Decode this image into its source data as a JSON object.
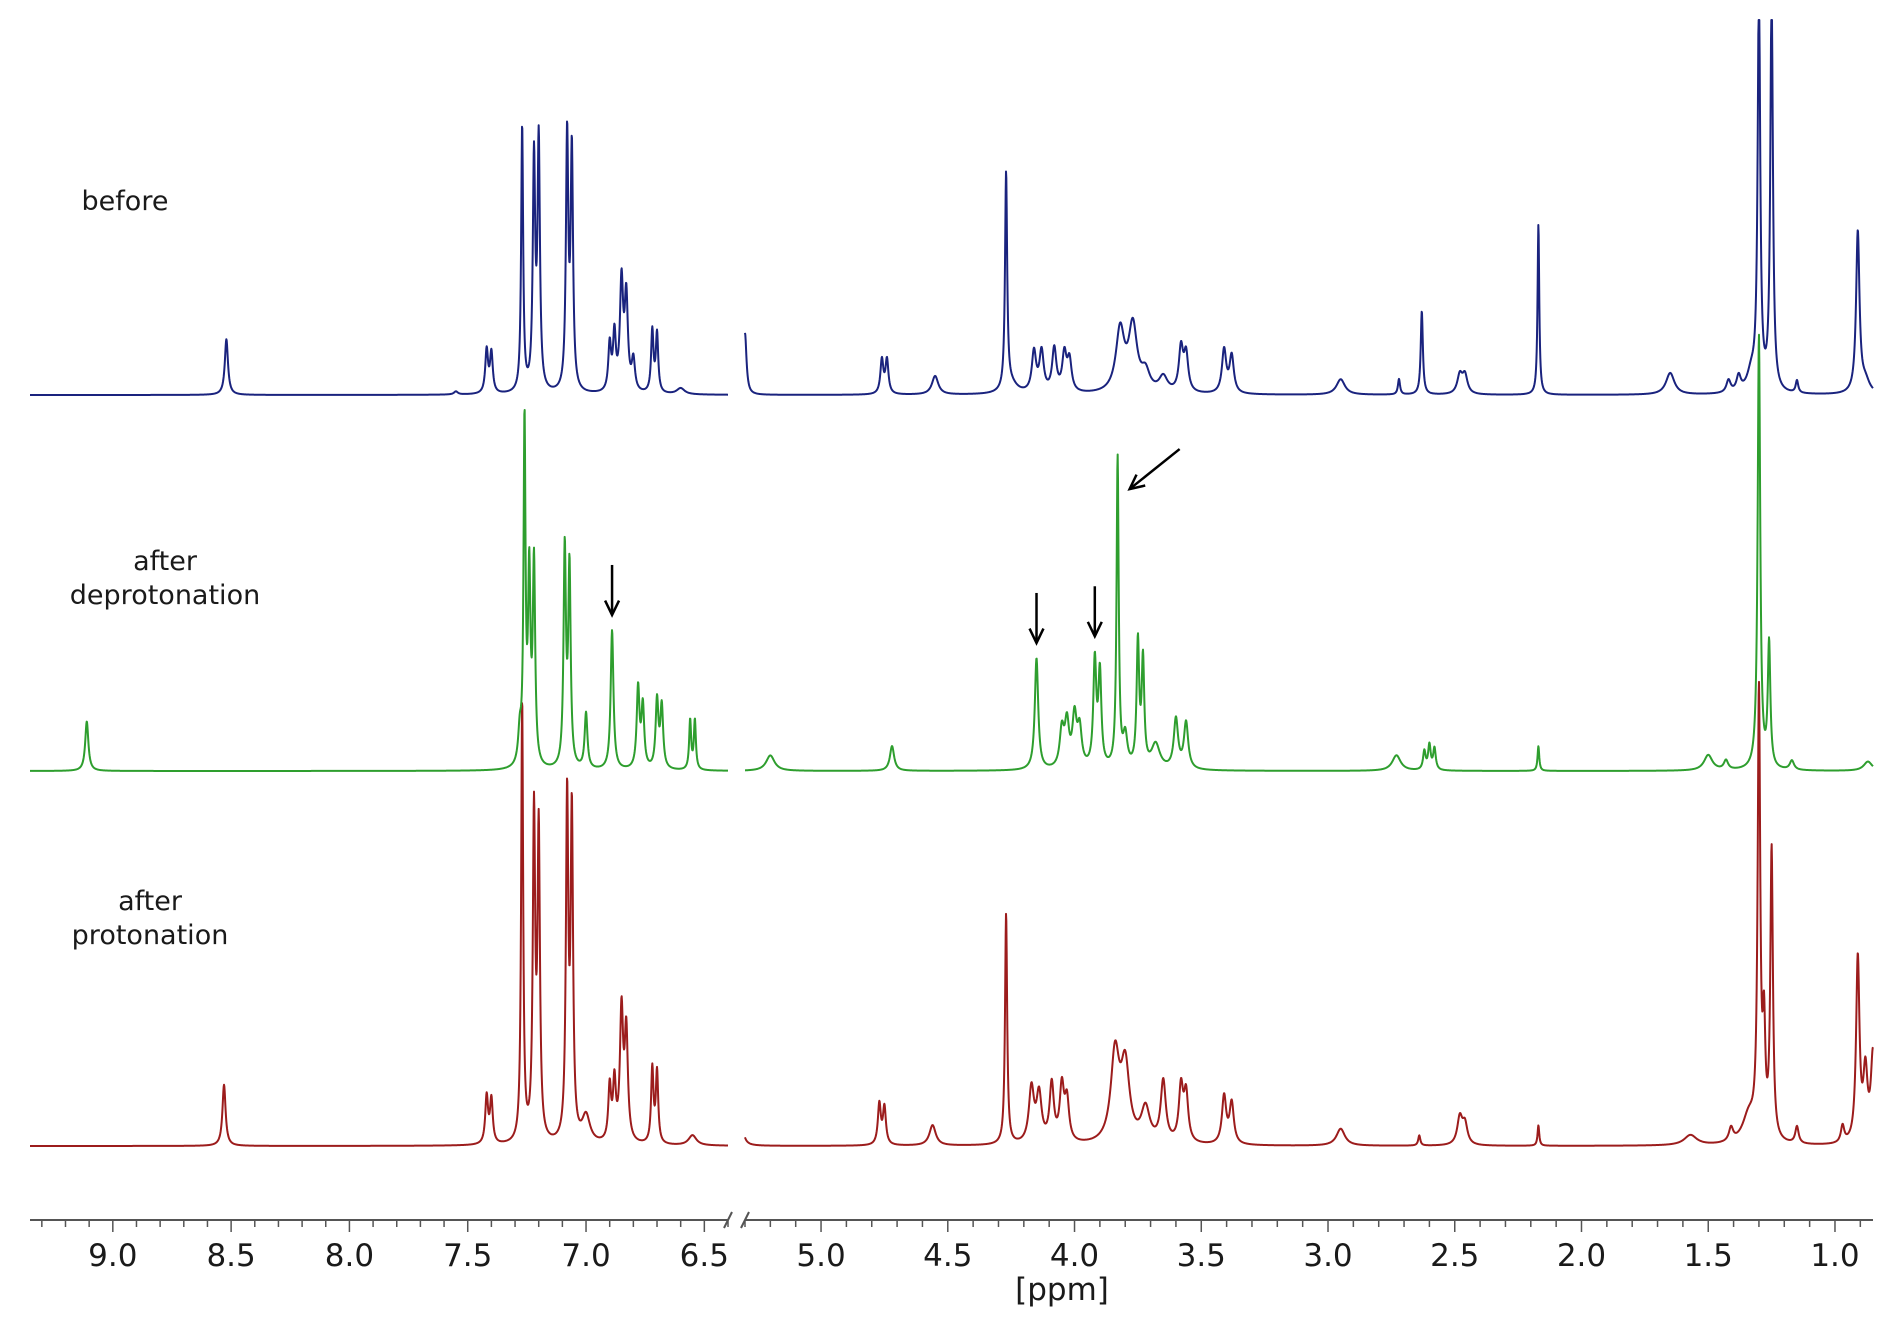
{
  "chart_data": {
    "type": "line",
    "xlabel": "[ppm]",
    "x_reversed": true,
    "x_range": [
      9.35,
      0.85
    ],
    "axis_break_between": [
      6.4,
      5.3
    ],
    "ticks": [
      "9.0",
      "8.5",
      "8.0",
      "7.5",
      "7.0",
      "6.5",
      "5.0",
      "4.5",
      "4.0",
      "3.5",
      "3.0",
      "2.5",
      "2.0",
      "1.5",
      "1.0"
    ],
    "tick_values": [
      9.0,
      8.5,
      8.0,
      7.5,
      7.0,
      6.5,
      5.0,
      4.5,
      4.0,
      3.5,
      3.0,
      2.5,
      2.0,
      1.5,
      1.0
    ],
    "series": [
      {
        "name": "before",
        "label_lines": [
          "before"
        ],
        "color": "#1a237e",
        "peaks": [
          [
            8.52,
            0.18,
            0.008
          ],
          [
            7.55,
            0.01,
            0.01
          ],
          [
            7.42,
            0.14,
            0.007
          ],
          [
            7.4,
            0.13,
            0.007
          ],
          [
            7.27,
            0.86,
            0.005
          ],
          [
            7.22,
            0.74,
            0.006
          ],
          [
            7.2,
            0.8,
            0.006
          ],
          [
            7.08,
            0.82,
            0.006
          ],
          [
            7.06,
            0.77,
            0.006
          ],
          [
            6.9,
            0.15,
            0.007
          ],
          [
            6.88,
            0.18,
            0.007
          ],
          [
            6.85,
            0.35,
            0.008
          ],
          [
            6.83,
            0.3,
            0.008
          ],
          [
            6.8,
            0.1,
            0.008
          ],
          [
            6.72,
            0.2,
            0.006
          ],
          [
            6.7,
            0.19,
            0.006
          ],
          [
            6.6,
            0.02,
            0.02
          ],
          [
            5.3,
            0.2,
            0.007
          ],
          [
            4.76,
            0.11,
            0.007
          ],
          [
            4.74,
            0.11,
            0.007
          ],
          [
            4.55,
            0.06,
            0.015
          ],
          [
            4.27,
            0.7,
            0.005
          ],
          [
            4.25,
            0.03,
            0.03
          ],
          [
            4.16,
            0.13,
            0.01
          ],
          [
            4.13,
            0.13,
            0.01
          ],
          [
            4.08,
            0.14,
            0.01
          ],
          [
            4.04,
            0.12,
            0.01
          ],
          [
            4.02,
            0.1,
            0.01
          ],
          [
            3.82,
            0.2,
            0.02
          ],
          [
            3.77,
            0.21,
            0.02
          ],
          [
            3.72,
            0.06,
            0.02
          ],
          [
            3.65,
            0.05,
            0.02
          ],
          [
            3.58,
            0.14,
            0.01
          ],
          [
            3.56,
            0.12,
            0.01
          ],
          [
            3.41,
            0.14,
            0.01
          ],
          [
            3.38,
            0.12,
            0.01
          ],
          [
            2.95,
            0.05,
            0.02
          ],
          [
            2.72,
            0.05,
            0.005
          ],
          [
            2.63,
            0.27,
            0.005
          ],
          [
            2.48,
            0.06,
            0.012
          ],
          [
            2.46,
            0.06,
            0.012
          ],
          [
            2.17,
            0.55,
            0.004
          ],
          [
            1.65,
            0.07,
            0.02
          ],
          [
            1.42,
            0.04,
            0.01
          ],
          [
            1.38,
            0.05,
            0.01
          ],
          [
            1.33,
            0.06,
            0.02
          ],
          [
            1.3,
            1.3,
            0.006
          ],
          [
            1.25,
            1.3,
            0.006
          ],
          [
            1.15,
            0.04,
            0.006
          ],
          [
            0.91,
            0.52,
            0.008
          ],
          [
            0.88,
            0.04,
            0.02
          ]
        ]
      },
      {
        "name": "after deprotonation",
        "label_lines": [
          "after",
          "deprotonation"
        ],
        "color": "#2e9e2e",
        "peaks": [
          [
            9.11,
            0.16,
            0.008
          ],
          [
            7.28,
            0.1,
            0.008
          ],
          [
            7.26,
            1.1,
            0.005
          ],
          [
            7.24,
            0.6,
            0.006
          ],
          [
            7.22,
            0.65,
            0.006
          ],
          [
            7.09,
            0.7,
            0.006
          ],
          [
            7.07,
            0.64,
            0.006
          ],
          [
            7.0,
            0.18,
            0.007
          ],
          [
            6.89,
            0.45,
            0.007
          ],
          [
            6.78,
            0.26,
            0.007
          ],
          [
            6.76,
            0.2,
            0.007
          ],
          [
            6.7,
            0.22,
            0.007
          ],
          [
            6.68,
            0.2,
            0.007
          ],
          [
            6.56,
            0.16,
            0.005
          ],
          [
            6.54,
            0.16,
            0.005
          ],
          [
            5.2,
            0.05,
            0.02
          ],
          [
            4.72,
            0.08,
            0.01
          ],
          [
            4.15,
            0.36,
            0.008
          ],
          [
            4.05,
            0.12,
            0.01
          ],
          [
            4.03,
            0.14,
            0.01
          ],
          [
            4.0,
            0.16,
            0.01
          ],
          [
            3.98,
            0.12,
            0.01
          ],
          [
            3.92,
            0.34,
            0.007
          ],
          [
            3.9,
            0.3,
            0.007
          ],
          [
            3.83,
            1.0,
            0.005
          ],
          [
            3.8,
            0.1,
            0.01
          ],
          [
            3.75,
            0.4,
            0.006
          ],
          [
            3.73,
            0.34,
            0.006
          ],
          [
            3.68,
            0.08,
            0.02
          ],
          [
            3.6,
            0.16,
            0.01
          ],
          [
            3.56,
            0.15,
            0.01
          ],
          [
            2.73,
            0.05,
            0.02
          ],
          [
            2.62,
            0.06,
            0.006
          ],
          [
            2.6,
            0.08,
            0.006
          ],
          [
            2.58,
            0.07,
            0.006
          ],
          [
            2.17,
            0.08,
            0.004
          ],
          [
            1.5,
            0.05,
            0.02
          ],
          [
            1.43,
            0.03,
            0.01
          ],
          [
            1.3,
            1.4,
            0.006
          ],
          [
            1.26,
            0.4,
            0.006
          ],
          [
            1.17,
            0.03,
            0.01
          ],
          [
            0.87,
            0.03,
            0.02
          ]
        ]
      },
      {
        "name": "after protonation",
        "label_lines": [
          "after",
          "protonation"
        ],
        "color": "#9c1c1c",
        "peaks": [
          [
            8.53,
            0.18,
            0.008
          ],
          [
            7.42,
            0.14,
            0.007
          ],
          [
            7.4,
            0.13,
            0.007
          ],
          [
            7.27,
            1.3,
            0.005
          ],
          [
            7.22,
            0.95,
            0.006
          ],
          [
            7.2,
            0.9,
            0.006
          ],
          [
            7.08,
            1.0,
            0.006
          ],
          [
            7.06,
            0.95,
            0.006
          ],
          [
            7.0,
            0.08,
            0.02
          ],
          [
            6.9,
            0.16,
            0.007
          ],
          [
            6.88,
            0.17,
            0.007
          ],
          [
            6.85,
            0.38,
            0.008
          ],
          [
            6.83,
            0.32,
            0.008
          ],
          [
            6.72,
            0.22,
            0.006
          ],
          [
            6.7,
            0.21,
            0.006
          ],
          [
            6.55,
            0.03,
            0.02
          ],
          [
            5.32,
            0.23,
            0.007
          ],
          [
            4.77,
            0.12,
            0.007
          ],
          [
            4.75,
            0.11,
            0.007
          ],
          [
            4.56,
            0.06,
            0.015
          ],
          [
            4.27,
            0.68,
            0.005
          ],
          [
            4.17,
            0.16,
            0.012
          ],
          [
            4.14,
            0.14,
            0.012
          ],
          [
            4.09,
            0.17,
            0.01
          ],
          [
            4.05,
            0.16,
            0.01
          ],
          [
            4.03,
            0.12,
            0.01
          ],
          [
            3.84,
            0.26,
            0.02
          ],
          [
            3.8,
            0.22,
            0.02
          ],
          [
            3.72,
            0.1,
            0.02
          ],
          [
            3.65,
            0.18,
            0.012
          ],
          [
            3.58,
            0.16,
            0.01
          ],
          [
            3.56,
            0.14,
            0.01
          ],
          [
            3.41,
            0.14,
            0.01
          ],
          [
            3.38,
            0.12,
            0.01
          ],
          [
            2.95,
            0.05,
            0.02
          ],
          [
            2.64,
            0.03,
            0.005
          ],
          [
            2.48,
            0.08,
            0.012
          ],
          [
            2.46,
            0.06,
            0.012
          ],
          [
            2.17,
            0.06,
            0.004
          ],
          [
            1.57,
            0.03,
            0.03
          ],
          [
            1.41,
            0.04,
            0.01
          ],
          [
            1.34,
            0.08,
            0.03
          ],
          [
            1.3,
            1.3,
            0.006
          ],
          [
            1.28,
            0.3,
            0.006
          ],
          [
            1.25,
            0.85,
            0.006
          ],
          [
            1.15,
            0.05,
            0.008
          ],
          [
            0.97,
            0.05,
            0.008
          ],
          [
            0.91,
            0.54,
            0.008
          ],
          [
            0.88,
            0.2,
            0.01
          ],
          [
            0.85,
            0.26,
            0.01
          ]
        ]
      }
    ],
    "annotations": [
      {
        "type": "arrow",
        "direction": "down",
        "target_series": "after deprotonation",
        "ppm": 6.89
      },
      {
        "type": "arrow",
        "direction": "down",
        "target_series": "after deprotonation",
        "ppm": 4.15
      },
      {
        "type": "arrow",
        "direction": "down",
        "target_series": "after deprotonation",
        "ppm": 3.92
      },
      {
        "type": "arrow",
        "direction": "down-left",
        "target_series": "after deprotonation",
        "ppm": 3.83
      }
    ],
    "grid": false,
    "legend": "none"
  }
}
